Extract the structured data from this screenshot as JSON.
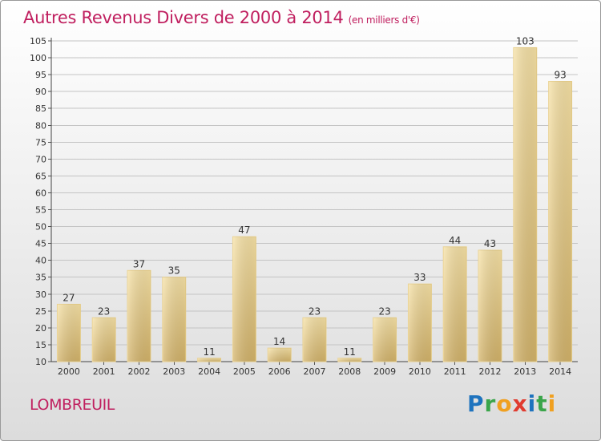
{
  "header": {
    "title": "Autres Revenus Divers de 2000 à 2014",
    "subtitle": "(en milliers d'€)"
  },
  "footer": {
    "city": "LOMBREUIL",
    "logo_letters": [
      "P",
      "r",
      "o",
      "x",
      "i",
      "t",
      "i"
    ]
  },
  "colors": {
    "title": "#c01f5f",
    "bar_light": "#f7e2a6",
    "bar_dark": "#d9b96e",
    "grid": "#bdbdbd"
  },
  "chart_data": {
    "type": "bar",
    "title": "Autres Revenus Divers de 2000 à 2014",
    "subtitle": "(en milliers d'€)",
    "xlabel": "",
    "ylabel": "",
    "categories": [
      "2000",
      "2001",
      "2002",
      "2003",
      "2004",
      "2005",
      "2006",
      "2007",
      "2008",
      "2009",
      "2010",
      "2011",
      "2012",
      "2013",
      "2014"
    ],
    "values": [
      27,
      23,
      37,
      35,
      11,
      47,
      14,
      23,
      11,
      23,
      33,
      44,
      43,
      103,
      93
    ],
    "ylim": [
      10,
      105
    ],
    "yticks": [
      10,
      15,
      20,
      25,
      30,
      35,
      40,
      45,
      50,
      55,
      60,
      65,
      70,
      75,
      80,
      85,
      90,
      95,
      100,
      105
    ],
    "grid": true,
    "legend": "none"
  }
}
